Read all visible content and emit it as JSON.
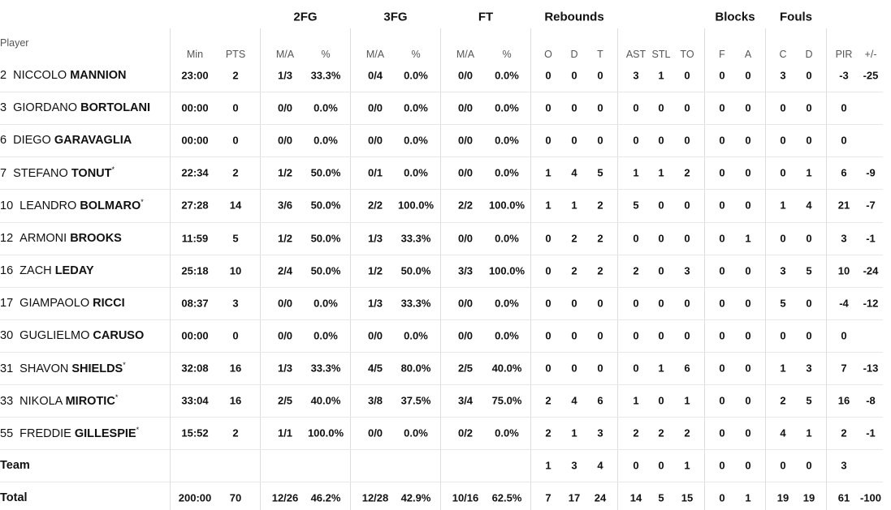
{
  "groups": [
    {
      "label": "2FG"
    },
    {
      "label": "3FG"
    },
    {
      "label": "FT"
    },
    {
      "label": "Rebounds"
    },
    {
      "label": "Blocks"
    },
    {
      "label": "Fouls"
    }
  ],
  "player_header": "Player",
  "columns": [
    "Min",
    "PTS",
    "M/A",
    "%",
    "M/A",
    "%",
    "M/A",
    "%",
    "O",
    "D",
    "T",
    "AST",
    "STL",
    "TO",
    "F",
    "A",
    "C",
    "D",
    "PIR",
    "+/-"
  ],
  "rows": [
    {
      "number": "2",
      "first": "NICCOLO",
      "last": "MANNION",
      "cells": [
        "23:00",
        2,
        "1/3",
        "33.3%",
        "0/4",
        "0.0%",
        "0/0",
        "0.0%",
        0,
        0,
        0,
        3,
        1,
        0,
        0,
        0,
        3,
        0,
        -3,
        -25
      ]
    },
    {
      "number": "3",
      "first": "GIORDANO",
      "last": "BORTOLANI",
      "cells": [
        "00:00",
        0,
        "0/0",
        "0.0%",
        "0/0",
        "0.0%",
        "0/0",
        "0.0%",
        0,
        0,
        0,
        0,
        0,
        0,
        0,
        0,
        0,
        0,
        0,
        null
      ]
    },
    {
      "number": "6",
      "first": "DIEGO",
      "last": "GARAVAGLIA",
      "cells": [
        "00:00",
        0,
        "0/0",
        "0.0%",
        "0/0",
        "0.0%",
        "0/0",
        "0.0%",
        0,
        0,
        0,
        0,
        0,
        0,
        0,
        0,
        0,
        0,
        0,
        null
      ]
    },
    {
      "number": "7",
      "first": "STEFANO",
      "last": "TONUT",
      "mark": "*",
      "cells": [
        "22:34",
        2,
        "1/2",
        "50.0%",
        "0/1",
        "0.0%",
        "0/0",
        "0.0%",
        1,
        4,
        5,
        1,
        1,
        2,
        0,
        0,
        0,
        1,
        6,
        -9
      ]
    },
    {
      "number": "10",
      "first": "LEANDRO",
      "last": "BOLMARO",
      "mark": "*",
      "cells": [
        "27:28",
        14,
        "3/6",
        "50.0%",
        "2/2",
        "100.0%",
        "2/2",
        "100.0%",
        1,
        1,
        2,
        5,
        0,
        0,
        0,
        0,
        1,
        4,
        21,
        -7
      ]
    },
    {
      "number": "12",
      "first": "ARMONI",
      "last": "BROOKS",
      "cells": [
        "11:59",
        5,
        "1/2",
        "50.0%",
        "1/3",
        "33.3%",
        "0/0",
        "0.0%",
        0,
        2,
        2,
        0,
        0,
        0,
        0,
        1,
        0,
        0,
        3,
        -1
      ]
    },
    {
      "number": "16",
      "first": "ZACH",
      "last": "LEDAY",
      "cells": [
        "25:18",
        10,
        "2/4",
        "50.0%",
        "1/2",
        "50.0%",
        "3/3",
        "100.0%",
        0,
        2,
        2,
        2,
        0,
        3,
        0,
        0,
        3,
        5,
        10,
        -24
      ]
    },
    {
      "number": "17",
      "first": "GIAMPAOLO",
      "last": "RICCI",
      "cells": [
        "08:37",
        3,
        "0/0",
        "0.0%",
        "1/3",
        "33.3%",
        "0/0",
        "0.0%",
        0,
        0,
        0,
        0,
        0,
        0,
        0,
        0,
        5,
        0,
        -4,
        -12
      ]
    },
    {
      "number": "30",
      "first": "GUGLIELMO",
      "last": "CARUSO",
      "cells": [
        "00:00",
        0,
        "0/0",
        "0.0%",
        "0/0",
        "0.0%",
        "0/0",
        "0.0%",
        0,
        0,
        0,
        0,
        0,
        0,
        0,
        0,
        0,
        0,
        0,
        null
      ]
    },
    {
      "number": "31",
      "first": "SHAVON",
      "last": "SHIELDS",
      "mark": "*",
      "cells": [
        "32:08",
        16,
        "1/3",
        "33.3%",
        "4/5",
        "80.0%",
        "2/5",
        "40.0%",
        0,
        0,
        0,
        0,
        1,
        6,
        0,
        0,
        1,
        3,
        7,
        -13
      ]
    },
    {
      "number": "33",
      "first": "NIKOLA",
      "last": "MIROTIC",
      "mark": "*",
      "cells": [
        "33:04",
        16,
        "2/5",
        "40.0%",
        "3/8",
        "37.5%",
        "3/4",
        "75.0%",
        2,
        4,
        6,
        1,
        0,
        1,
        0,
        0,
        2,
        5,
        16,
        -8
      ]
    },
    {
      "number": "55",
      "first": "FREDDIE",
      "last": "GILLESPIE",
      "mark": "*",
      "cells": [
        "15:52",
        2,
        "1/1",
        "100.0%",
        "0/0",
        "0.0%",
        "0/2",
        "0.0%",
        2,
        1,
        3,
        2,
        2,
        2,
        0,
        0,
        4,
        1,
        2,
        -1
      ]
    },
    {
      "name": "Team",
      "cells": [
        null,
        null,
        null,
        null,
        null,
        null,
        null,
        null,
        1,
        3,
        4,
        0,
        0,
        1,
        0,
        0,
        0,
        0,
        3,
        null
      ]
    },
    {
      "name": "Total",
      "cells": [
        "200:00",
        70,
        "12/26",
        "46.2%",
        "12/28",
        "42.9%",
        "10/16",
        "62.5%",
        7,
        17,
        24,
        14,
        5,
        15,
        0,
        1,
        19,
        19,
        61,
        -100
      ]
    }
  ]
}
